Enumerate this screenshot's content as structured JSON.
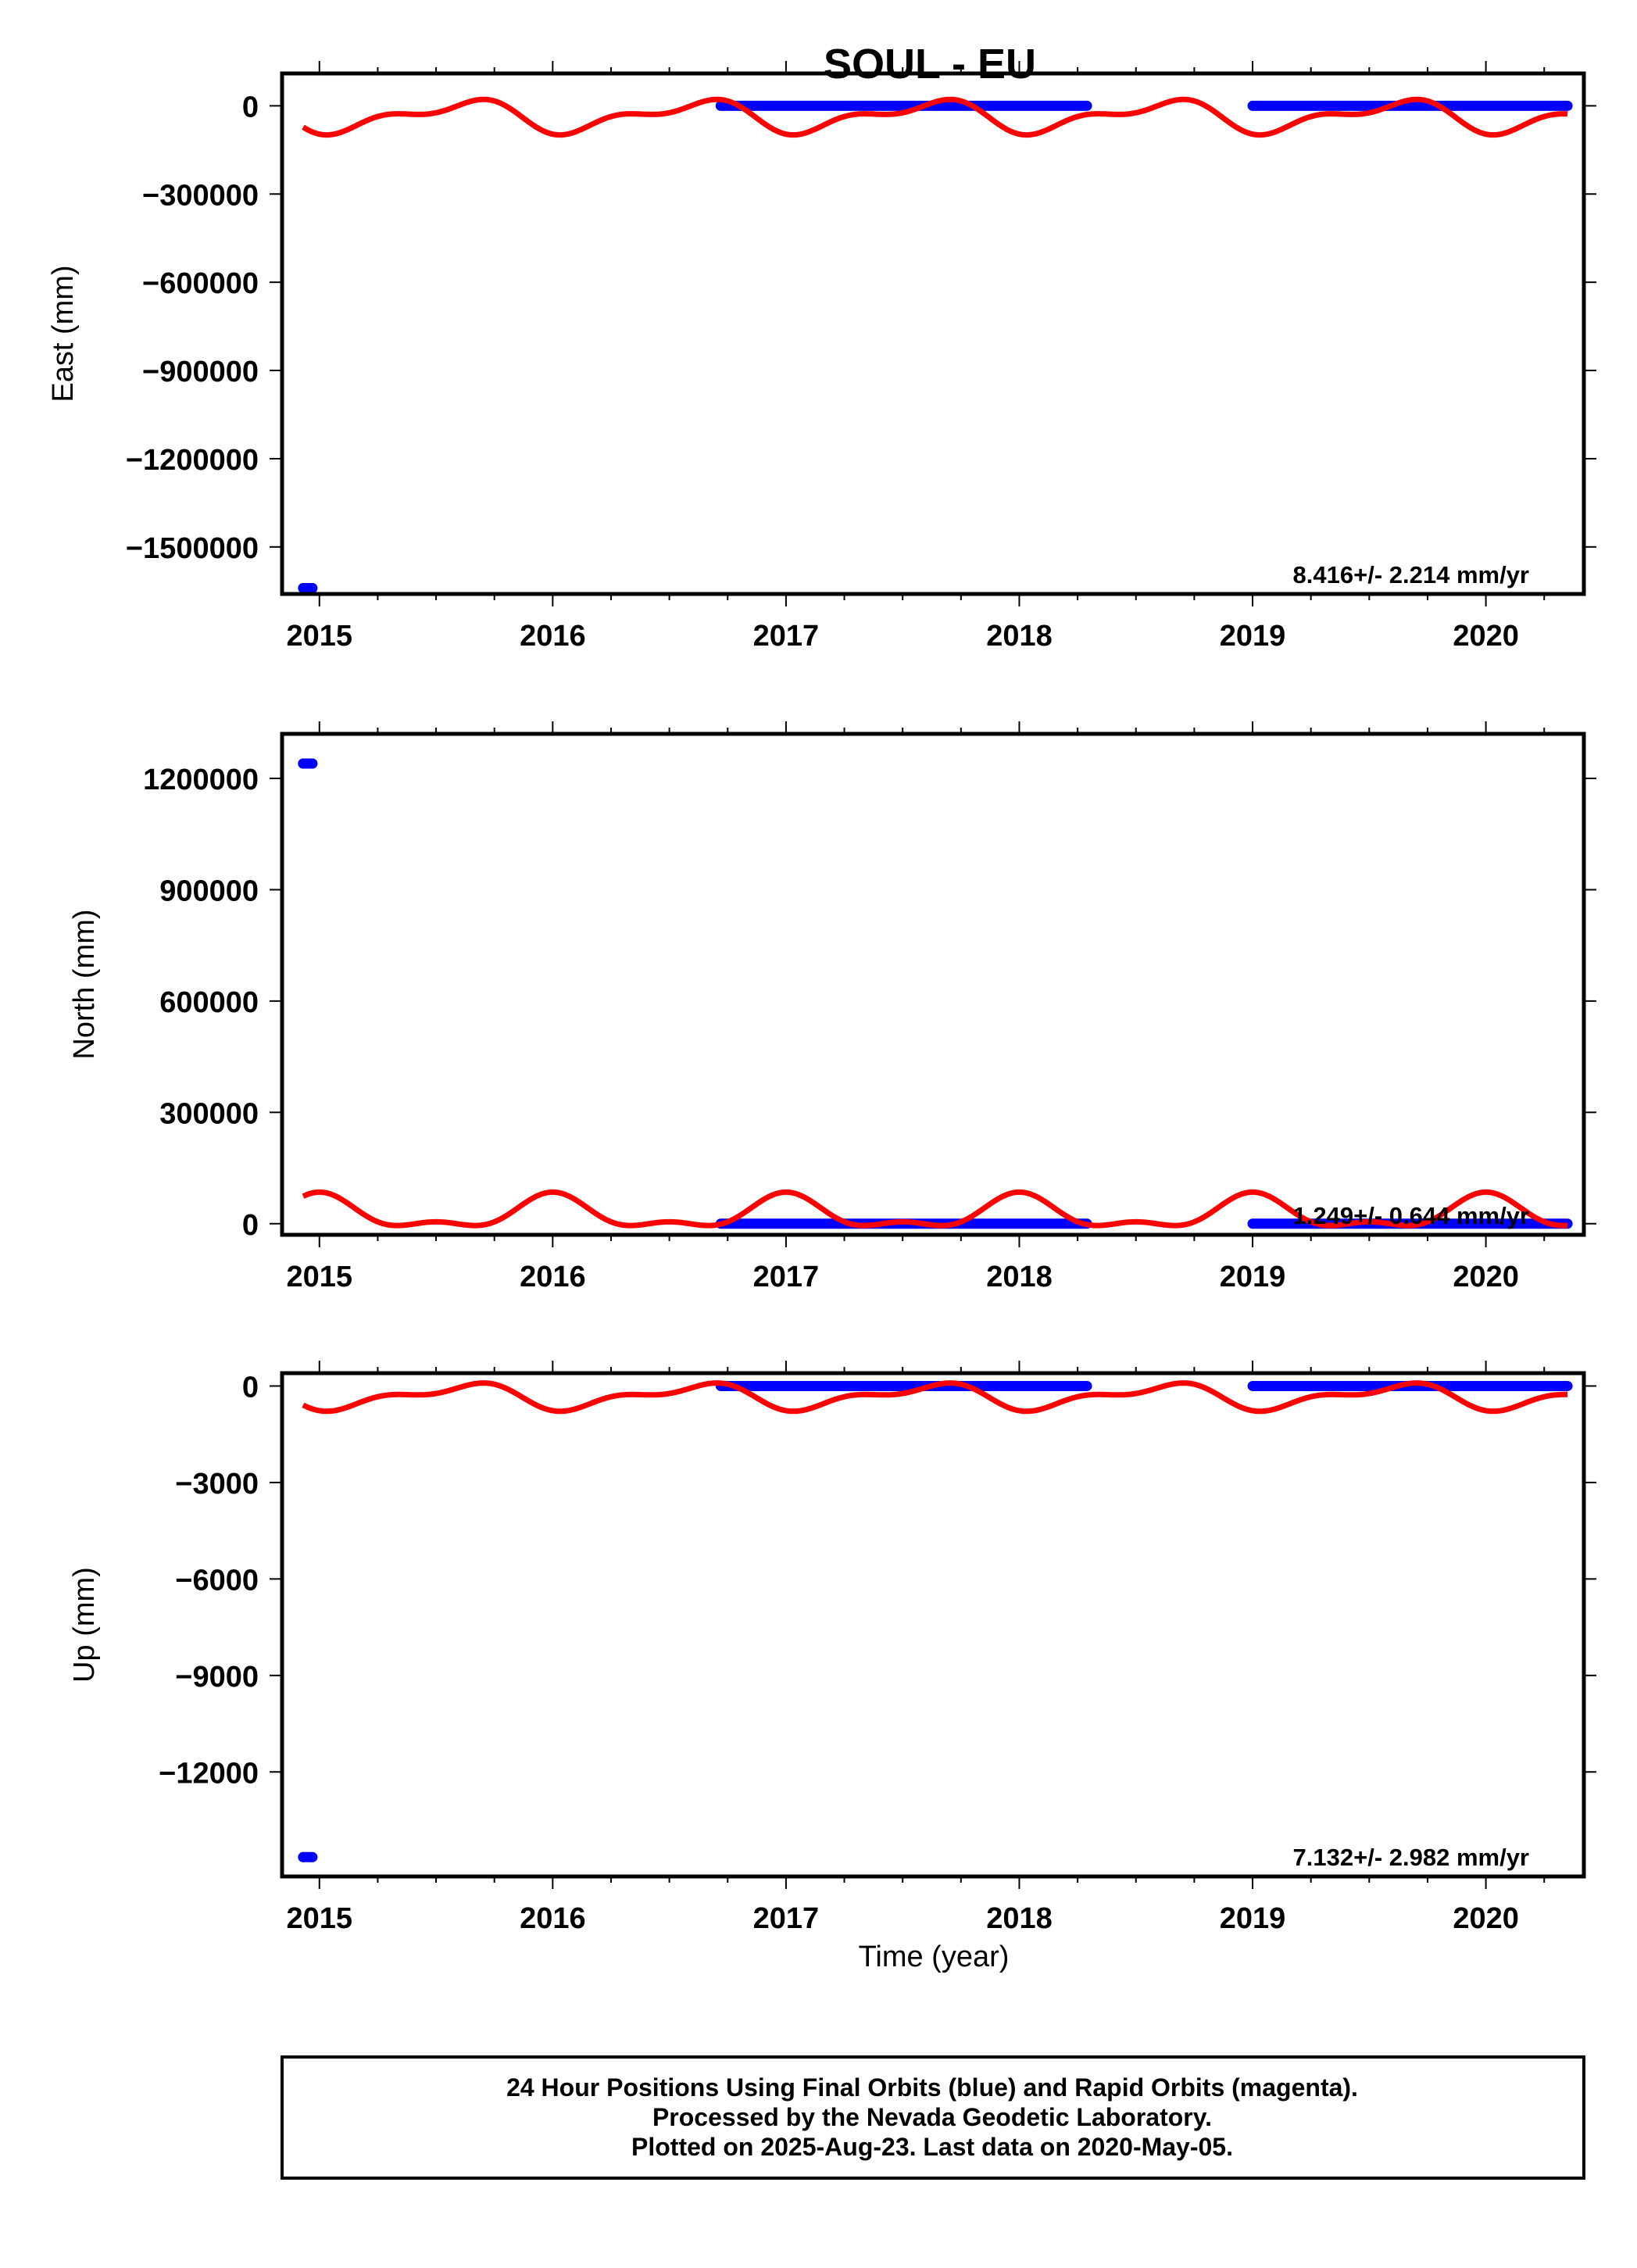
{
  "title": "SOUL - EU",
  "footer": {
    "line1": "24 Hour Positions Using Final Orbits (blue) and Rapid Orbits (magenta).",
    "line2": "Processed by the Nevada Geodetic Laboratory.",
    "line3": "Plotted on 2025-Aug-23. Last data on 2020-May-05."
  },
  "colors": {
    "final_orbits": "#0000ff",
    "seasonal_model": "#ff0000",
    "frame": "#000000"
  },
  "chart_data": [
    {
      "type": "scatter",
      "ylabel": "East (mm)",
      "xlabel": "",
      "xlim": [
        2014.84,
        2020.42
      ],
      "ylim": [
        -1660000,
        110000
      ],
      "x_ticks": [
        "2015",
        "2016",
        "2017",
        "2018",
        "2019",
        "2020"
      ],
      "y_ticks": [
        "0",
        "−300000",
        "−600000",
        "−900000",
        "−1200000",
        "−1500000"
      ],
      "y_tick_values": [
        0,
        -300000,
        -600000,
        -900000,
        -1200000,
        -1500000
      ],
      "rate_label": "8.416+/- 2.214 mm/yr",
      "series": [
        {
          "kind": "points",
          "points": [
            [
              2014.93,
              -1640000
            ],
            [
              2014.97,
              -1640000
            ]
          ]
        },
        {
          "kind": "band",
          "x": [
            2016.72,
            2018.29
          ],
          "y": 0
        },
        {
          "kind": "band",
          "x": [
            2019.0,
            2020.35
          ],
          "y": 0
        }
      ],
      "seasonal": {
        "offset": -35000,
        "annual_amp": 45000,
        "semiannual_amp": 25000,
        "annual_peak": 2015.6,
        "semi_peak": 2015.25,
        "x": [
          2014.93,
          2020.35
        ]
      }
    },
    {
      "type": "scatter",
      "ylabel": "North (mm)",
      "xlabel": "",
      "xlim": [
        2014.84,
        2020.42
      ],
      "ylim": [
        -30000,
        1320000
      ],
      "x_ticks": [
        "2015",
        "2016",
        "2017",
        "2018",
        "2019",
        "2020"
      ],
      "y_ticks": [
        "0",
        "300000",
        "600000",
        "900000",
        "1200000"
      ],
      "y_tick_values": [
        0,
        300000,
        600000,
        900000,
        1200000
      ],
      "rate_label": "1.249+/- 0.644 mm/yr",
      "series": [
        {
          "kind": "points",
          "points": [
            [
              2014.93,
              1240000
            ],
            [
              2014.97,
              1240000
            ]
          ]
        },
        {
          "kind": "band",
          "x": [
            2016.72,
            2018.29
          ],
          "y": 0
        },
        {
          "kind": "band",
          "x": [
            2019.0,
            2020.35
          ],
          "y": 0
        }
      ],
      "seasonal": {
        "offset": 25000,
        "annual_amp": 40000,
        "semiannual_amp": 20000,
        "annual_peak": 2015.0,
        "semi_peak": 2015.0,
        "x": [
          2014.93,
          2020.35
        ]
      }
    },
    {
      "type": "scatter",
      "ylabel": "Up (mm)",
      "xlabel": "Time (year)",
      "xlim": [
        2014.84,
        2020.42
      ],
      "ylim": [
        -15250,
        400
      ],
      "x_ticks": [
        "2015",
        "2016",
        "2017",
        "2018",
        "2019",
        "2020"
      ],
      "y_ticks": [
        "0",
        "−3000",
        "−6000",
        "−9000",
        "−12000"
      ],
      "y_tick_values": [
        0,
        -3000,
        -6000,
        -9000,
        -12000
      ],
      "rate_label": "7.132+/- 2.982 mm/yr",
      "series": [
        {
          "kind": "points",
          "points": [
            [
              2014.93,
              -14650
            ],
            [
              2014.97,
              -14650
            ]
          ]
        },
        {
          "kind": "band",
          "x": [
            2016.72,
            2018.29
          ],
          "y": 0
        },
        {
          "kind": "band",
          "x": [
            2019.0,
            2020.35
          ],
          "y": 0
        }
      ],
      "seasonal": {
        "offset": -320,
        "annual_amp": 330,
        "semiannual_amp": 180,
        "annual_peak": 2015.6,
        "semi_peak": 2015.25,
        "x": [
          2014.93,
          2020.35
        ]
      }
    }
  ]
}
